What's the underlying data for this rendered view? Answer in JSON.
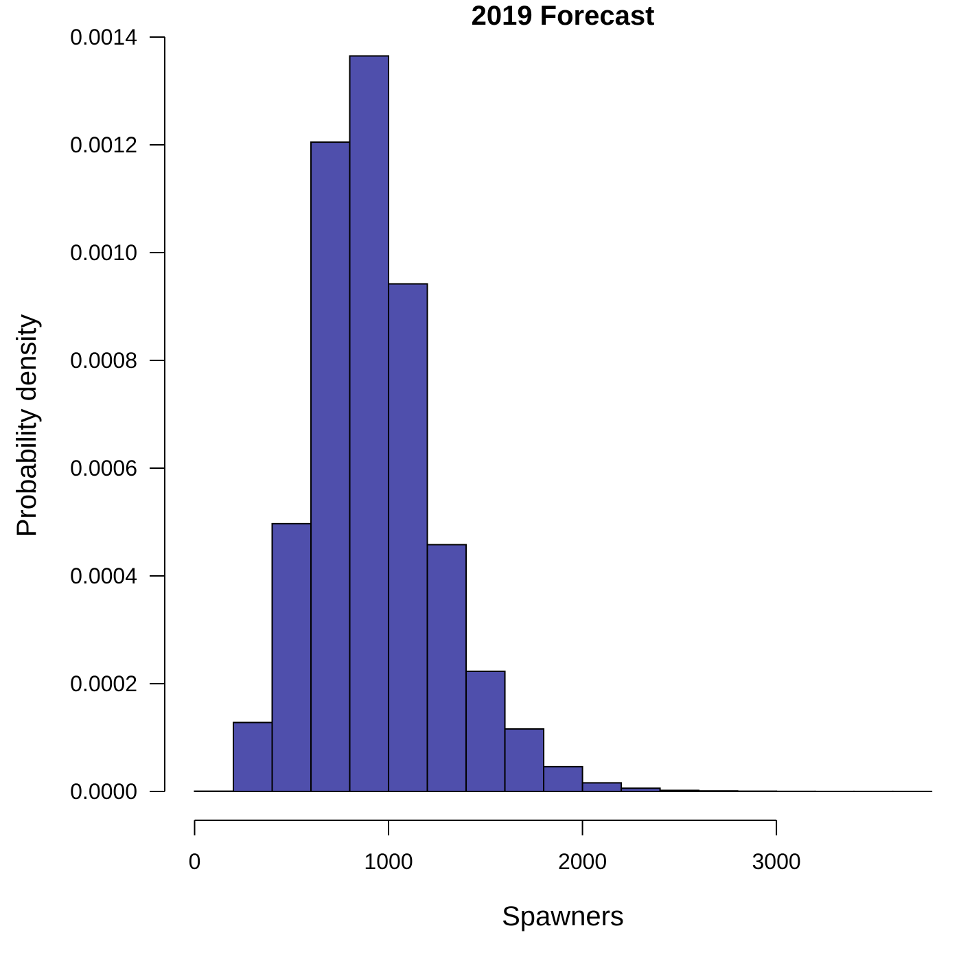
{
  "chart_data": {
    "type": "bar",
    "subtype": "histogram",
    "title": "2019 Forecast",
    "xlabel": "Spawners",
    "ylabel": "Probability density",
    "bar_color": "#4f4fac",
    "bin_width": 200,
    "bins": [
      {
        "x0": 0,
        "x1": 200,
        "density": 5e-07
      },
      {
        "x0": 200,
        "x1": 400,
        "density": 0.000128
      },
      {
        "x0": 400,
        "x1": 600,
        "density": 0.000497
      },
      {
        "x0": 600,
        "x1": 800,
        "density": 0.001205
      },
      {
        "x0": 800,
        "x1": 1000,
        "density": 0.001365
      },
      {
        "x0": 1000,
        "x1": 1200,
        "density": 0.000942
      },
      {
        "x0": 1200,
        "x1": 1400,
        "density": 0.000458
      },
      {
        "x0": 1400,
        "x1": 1600,
        "density": 0.000223
      },
      {
        "x0": 1600,
        "x1": 1800,
        "density": 0.000116
      },
      {
        "x0": 1800,
        "x1": 2000,
        "density": 4.6e-05
      },
      {
        "x0": 2000,
        "x1": 2200,
        "density": 1.6e-05
      },
      {
        "x0": 2200,
        "x1": 2400,
        "density": 6e-06
      },
      {
        "x0": 2400,
        "x1": 2600,
        "density": 2e-06
      },
      {
        "x0": 2600,
        "x1": 2800,
        "density": 1e-06
      },
      {
        "x0": 2800,
        "x1": 3000,
        "density": 5e-07
      },
      {
        "x0": 3000,
        "x1": 3200,
        "density": 2e-07
      },
      {
        "x0": 3200,
        "x1": 3400,
        "density": 1e-07
      },
      {
        "x0": 3400,
        "x1": 3600,
        "density": 1e-07
      },
      {
        "x0": 3600,
        "x1": 3800,
        "density": 1e-07
      }
    ],
    "x_ticks": [
      0,
      1000,
      2000,
      3000
    ],
    "x_tick_labels": [
      "0",
      "1000",
      "2000",
      "3000"
    ],
    "y_ticks": [
      0,
      0.0002,
      0.0004,
      0.0006,
      0.0008,
      0.001,
      0.0012,
      0.0014
    ],
    "y_tick_labels": [
      "0.0000",
      "0.0002",
      "0.0004",
      "0.0006",
      "0.0008",
      "0.0010",
      "0.0012",
      "0.0014"
    ],
    "xlim": [
      0,
      3800
    ],
    "ylim": [
      0,
      0.0014
    ],
    "grid": false,
    "legend": "none"
  }
}
